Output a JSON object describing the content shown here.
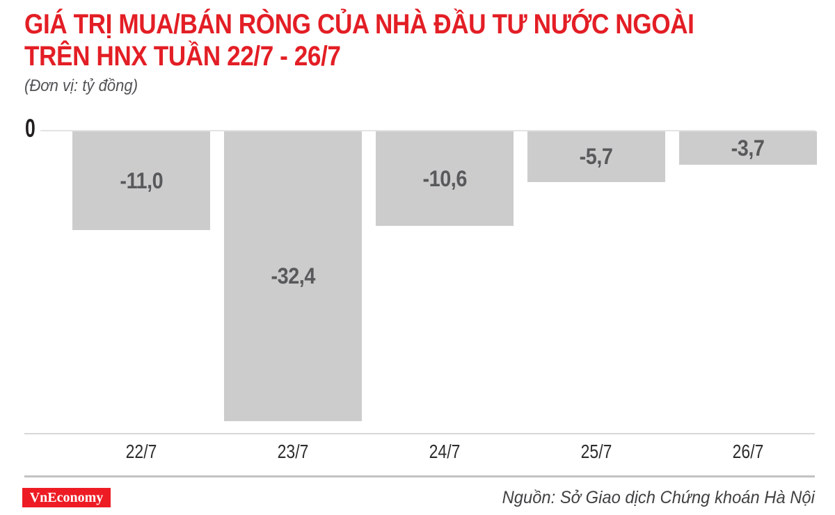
{
  "header": {
    "title_line1": "GIÁ TRỊ MUA/BÁN RÒNG CỦA NHÀ ĐẦU TƯ NƯỚC NGOÀI",
    "title_line2": "TRÊN HNX TUẦN 22/7 - 26/7",
    "subtitle": "(Đơn vị: tỷ đồng)"
  },
  "chart_data": {
    "type": "bar",
    "title": "GIÁ TRỊ MUA/BÁN RÒNG CỦA NHÀ ĐẦU TƯ NƯỚC NGOÀI TRÊN HNX TUẦN 22/7 - 26/7",
    "subtitle": "(Đơn vị: tỷ đồng)",
    "unit": "tỷ đồng",
    "categories": [
      "22/7",
      "23/7",
      "24/7",
      "25/7",
      "26/7"
    ],
    "values": [
      -11.0,
      -32.4,
      -10.6,
      -5.7,
      -3.7
    ],
    "value_labels": [
      "-11,0",
      "-32,4",
      "-10,6",
      "-5,7",
      "-3,7"
    ],
    "ylim": [
      -35,
      0
    ],
    "zero_tick_label": "0",
    "grid": false,
    "legend": false,
    "xlabel": "",
    "ylabel": ""
  },
  "footer": {
    "logo_text": "VnEconomy",
    "source_text": "Nguồn: Sở Giao dịch Chứng khoán Hà Nội"
  },
  "colors": {
    "title_red": "#e31e25",
    "logo_red": "#ed1c24",
    "bar_gray": "#cdcccc",
    "value_label_gray": "#58595b",
    "axis_label_dark": "#2d2d2f"
  }
}
